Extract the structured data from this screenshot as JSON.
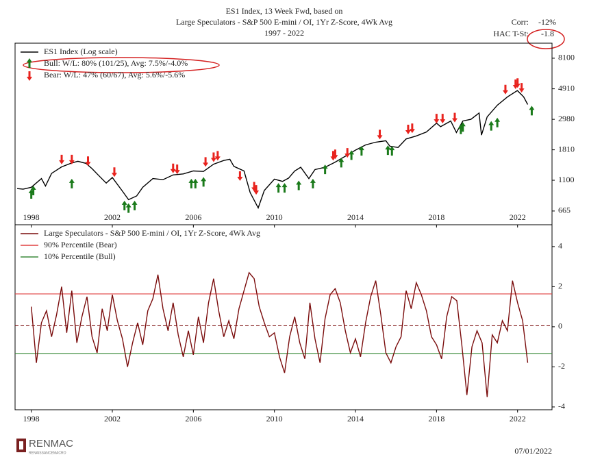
{
  "chart_data": [
    {
      "type": "line",
      "title": [
        "ES1 Index, 13 Week Fwd, based on",
        "Large Speculators - S&P 500 E-mini / OI, 1Yr Z-Score, 4Wk Avg",
        "1997 - 2022"
      ],
      "log_scale": true,
      "xlim": [
        1997.2,
        2023.7
      ],
      "xticks": [
        1998,
        2002,
        2006,
        2010,
        2014,
        2018,
        2022
      ],
      "ylim": [
        531,
        10360
      ],
      "yticks": [
        665,
        1100,
        1810,
        2980,
        4910,
        8100
      ],
      "legend": "upper left",
      "stats": [
        {
          "label": "Corr:",
          "value": "-12%"
        },
        {
          "label": "HAC T-St:",
          "value": "-1.8"
        }
      ],
      "series": [
        {
          "name": "ES1 Index (Log scale)",
          "color": "#000000",
          "marker": "line",
          "x": [
            1997.3,
            1997.6,
            1998.0,
            1998.5,
            1998.7,
            1999.0,
            1999.5,
            2000.0,
            2000.3,
            2000.7,
            2001.0,
            2001.3,
            2001.7,
            2002.0,
            2002.5,
            2002.8,
            2003.2,
            2003.5,
            2004.0,
            2004.5,
            2005.0,
            2005.5,
            2006.0,
            2006.5,
            2007.0,
            2007.5,
            2007.8,
            2008.0,
            2008.5,
            2008.8,
            2009.2,
            2009.5,
            2010.0,
            2010.4,
            2010.7,
            2011.0,
            2011.3,
            2011.7,
            2012.0,
            2012.5,
            2013.0,
            2013.5,
            2014.0,
            2014.5,
            2015.0,
            2015.5,
            2015.7,
            2016.1,
            2016.5,
            2017.0,
            2017.5,
            2018.0,
            2018.2,
            2018.7,
            2018.98,
            2019.3,
            2019.7,
            2020.1,
            2020.22,
            2020.5,
            2021.0,
            2021.5,
            2021.99,
            2022.3,
            2022.5
          ],
          "values": [
            960,
            950,
            980,
            1130,
            1000,
            1230,
            1370,
            1460,
            1500,
            1450,
            1330,
            1200,
            1050,
            1150,
            920,
            800,
            850,
            980,
            1130,
            1110,
            1200,
            1220,
            1280,
            1270,
            1430,
            1520,
            1550,
            1380,
            1280,
            900,
            700,
            930,
            1120,
            1080,
            1140,
            1280,
            1360,
            1130,
            1310,
            1360,
            1480,
            1630,
            1800,
            1960,
            2050,
            2100,
            1920,
            1880,
            2160,
            2270,
            2420,
            2800,
            2640,
            2900,
            2400,
            2900,
            2980,
            3300,
            2300,
            3100,
            3750,
            4300,
            4770,
            4300,
            3800
          ]
        },
        {
          "name": "Bull:  W/L: 80% (101/25), Avg: 7.5%/-4.0%",
          "color": "#1a7a1a",
          "marker": "up-arrow",
          "x": [
            1998.0,
            1998.1,
            2000.0,
            2002.6,
            2002.8,
            2003.1,
            2005.9,
            2006.1,
            2006.5,
            2010.2,
            2010.5,
            2011.2,
            2011.9,
            2012.5,
            2013.3,
            2013.8,
            2014.3,
            2015.6,
            2015.8,
            2019.2,
            2019.3,
            2020.7,
            2021.0,
            2022.7
          ],
          "values": [
            870,
            920,
            1030,
            720,
            690,
            720,
            1030,
            1030,
            1060,
            960,
            960,
            1000,
            1030,
            1300,
            1450,
            1640,
            1760,
            1780,
            1760,
            2500,
            2600,
            2650,
            2800,
            3400
          ]
        },
        {
          "name": "Bear:  W/L: 47% (60/67), Avg: 5.6%/-5.6%",
          "color": "#e8231e",
          "marker": "down-arrow",
          "x": [
            1999.5,
            2000.0,
            2000.8,
            2002.1,
            2005.0,
            2005.2,
            2006.6,
            2007.0,
            2007.2,
            2008.3,
            2009.0,
            2009.1,
            2012.9,
            2013.0,
            2013.6,
            2015.2,
            2016.6,
            2016.8,
            2018.0,
            2018.3,
            2018.9,
            2021.4,
            2021.9,
            2022.0,
            2022.2
          ],
          "values": [
            1560,
            1560,
            1520,
            1270,
            1350,
            1330,
            1500,
            1620,
            1660,
            1190,
            1000,
            950,
            1660,
            1700,
            1740,
            2350,
            2550,
            2600,
            3050,
            3050,
            3100,
            4900,
            5350,
            5450,
            5050
          ]
        }
      ]
    },
    {
      "type": "line",
      "xlim": [
        1997.2,
        2023.7
      ],
      "xticks": [
        1998,
        2002,
        2006,
        2010,
        2014,
        2018,
        2022
      ],
      "ylim": [
        -4.14,
        5.09
      ],
      "yticks": [
        -4,
        -2,
        0,
        2,
        4
      ],
      "legend": "upper left",
      "series": [
        {
          "name": "Large Speculators - S&P 500 E-mini / OI, 1Yr Z-Score, 4Wk Avg",
          "color": "#7a0c0c",
          "x": [
            1998.0,
            1998.25,
            1998.5,
            1998.75,
            1999.0,
            1999.25,
            1999.5,
            1999.75,
            2000.0,
            2000.25,
            2000.5,
            2000.75,
            2001.0,
            2001.25,
            2001.5,
            2001.75,
            2002.0,
            2002.25,
            2002.5,
            2002.75,
            2003.0,
            2003.25,
            2003.5,
            2003.75,
            2004.0,
            2004.25,
            2004.5,
            2004.75,
            2005.0,
            2005.25,
            2005.5,
            2005.75,
            2006.0,
            2006.25,
            2006.5,
            2006.75,
            2007.0,
            2007.25,
            2007.5,
            2007.75,
            2008.0,
            2008.25,
            2008.5,
            2008.75,
            2009.0,
            2009.25,
            2009.5,
            2009.75,
            2010.0,
            2010.25,
            2010.5,
            2010.75,
            2011.0,
            2011.25,
            2011.5,
            2011.75,
            2012.0,
            2012.25,
            2012.5,
            2012.75,
            2013.0,
            2013.25,
            2013.5,
            2013.75,
            2014.0,
            2014.25,
            2014.5,
            2014.75,
            2015.0,
            2015.25,
            2015.5,
            2015.75,
            2016.0,
            2016.25,
            2016.5,
            2016.75,
            2017.0,
            2017.25,
            2017.5,
            2017.75,
            2018.0,
            2018.25,
            2018.5,
            2018.75,
            2019.0,
            2019.25,
            2019.5,
            2019.75,
            2020.0,
            2020.25,
            2020.5,
            2020.75,
            2021.0,
            2021.25,
            2021.5,
            2021.75,
            2022.0,
            2022.25,
            2022.5
          ],
          "values": [
            1.0,
            -1.8,
            0.2,
            0.8,
            -0.5,
            0.6,
            2.0,
            -0.3,
            1.8,
            -0.8,
            0.5,
            1.5,
            -0.5,
            -1.3,
            0.9,
            -0.2,
            1.6,
            0.3,
            -0.6,
            -2.0,
            -0.8,
            0.2,
            -0.9,
            0.8,
            1.4,
            2.6,
            0.9,
            -0.2,
            1.2,
            -0.4,
            -1.5,
            -0.2,
            -1.4,
            0.5,
            -0.8,
            1.2,
            2.4,
            0.8,
            -0.5,
            0.3,
            -0.6,
            0.9,
            1.8,
            2.7,
            2.4,
            1.0,
            0.2,
            -0.5,
            -0.3,
            -1.5,
            -2.3,
            -0.5,
            0.5,
            -0.8,
            -1.6,
            1.2,
            -0.6,
            -1.8,
            0.4,
            1.6,
            1.9,
            1.2,
            -0.2,
            -1.3,
            -0.6,
            -1.5,
            0.2,
            1.5,
            2.3,
            0.6,
            -1.3,
            -1.8,
            -1.0,
            -0.5,
            1.8,
            0.9,
            2.2,
            1.6,
            0.8,
            -0.5,
            -0.9,
            -1.6,
            0.5,
            1.5,
            1.3,
            -0.9,
            -3.4,
            -1.0,
            -0.2,
            -0.8,
            -3.5,
            -0.4,
            -0.8,
            0.3,
            -0.2,
            2.3,
            1.2,
            0.3,
            -1.8
          ]
        }
      ],
      "hlines": [
        {
          "name": "90% Percentile (Bear)",
          "color": "#e04040",
          "value": 1.64
        },
        {
          "name": "10% Percentile (Bull)",
          "color": "#3a8a3a",
          "value": -1.33
        },
        {
          "color": "#7a0c0c",
          "value": 0.05,
          "style": "dashed"
        }
      ]
    }
  ],
  "footer": {
    "logo": "RENMAC",
    "logo_sub": "RENAISSANCEMACRO",
    "date": "07/01/2022"
  }
}
